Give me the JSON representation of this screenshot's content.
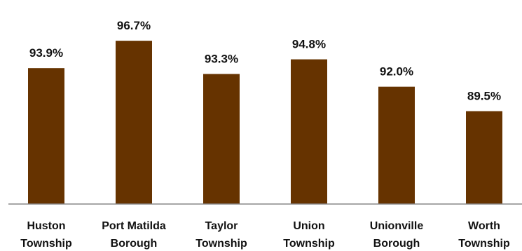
{
  "chart_data": {
    "type": "bar",
    "categories": [
      [
        "Huston",
        "Township"
      ],
      [
        "Port Matilda",
        "Borough"
      ],
      [
        "Taylor",
        "Township"
      ],
      [
        "Union",
        "Township"
      ],
      [
        "Unionville",
        "Borough"
      ],
      [
        "Worth",
        "Township"
      ]
    ],
    "values": [
      93.9,
      96.7,
      93.3,
      94.8,
      92.0,
      89.5
    ],
    "value_labels": [
      "93.9%",
      "96.7%",
      "93.3%",
      "94.8%",
      "92.0%",
      "89.5%"
    ],
    "ylim": [
      80,
      98
    ],
    "bar_color": "#663300",
    "axis_color": "#888888",
    "grid": false,
    "legend": "none"
  }
}
